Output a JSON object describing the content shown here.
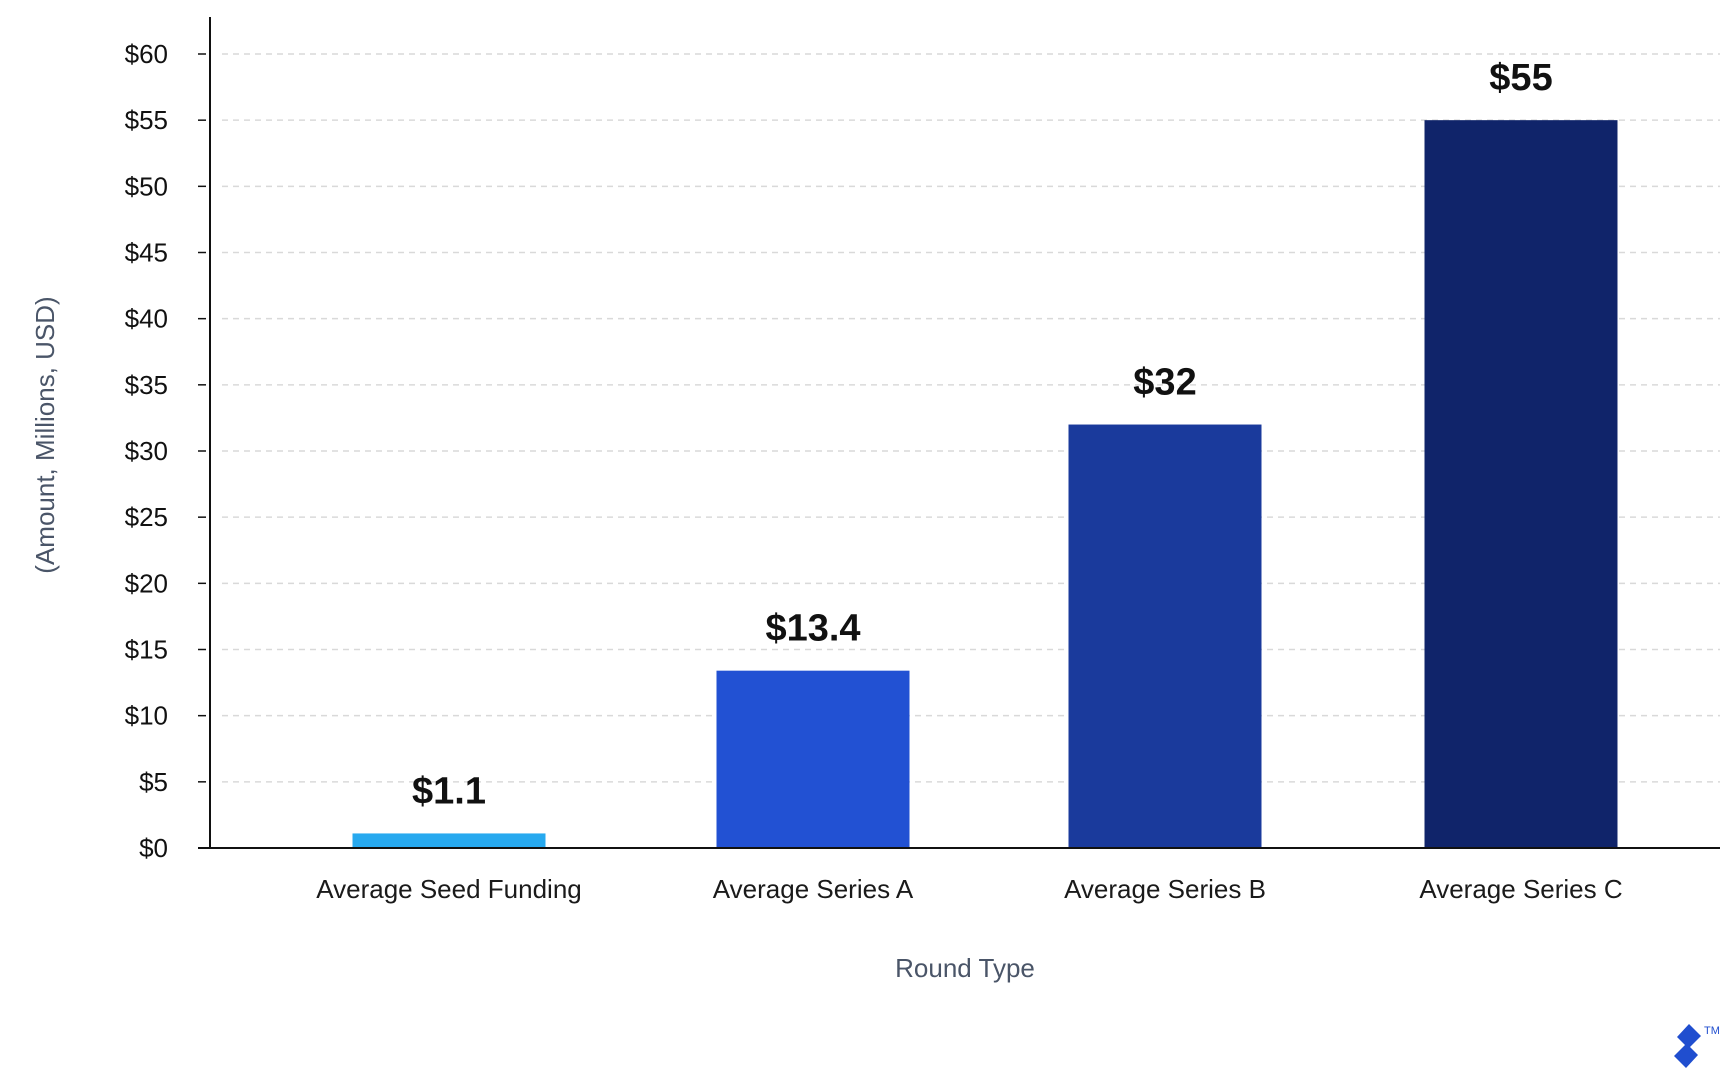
{
  "chart_data": {
    "type": "bar",
    "title": "",
    "xlabel": "Round Type",
    "ylabel": "(Amount, Millions, USD)",
    "ylim": [
      0,
      60
    ],
    "ytick_step": 5,
    "ytick_prefix": "$",
    "grid": true,
    "categories": [
      "Average Seed Funding",
      "Average Series A",
      "Average Series B",
      "Average Series C"
    ],
    "values": [
      1.1,
      13.4,
      32,
      55
    ],
    "data_labels": [
      "$1.1",
      "$13.4",
      "$32",
      "$55"
    ],
    "bar_colors": [
      "#27a9ef",
      "#2251d3",
      "#1a3a9c",
      "#10246a"
    ]
  },
  "logo": {
    "icon": "toptal-logo-icon",
    "trademark": "TM",
    "color": "#204ecf"
  }
}
